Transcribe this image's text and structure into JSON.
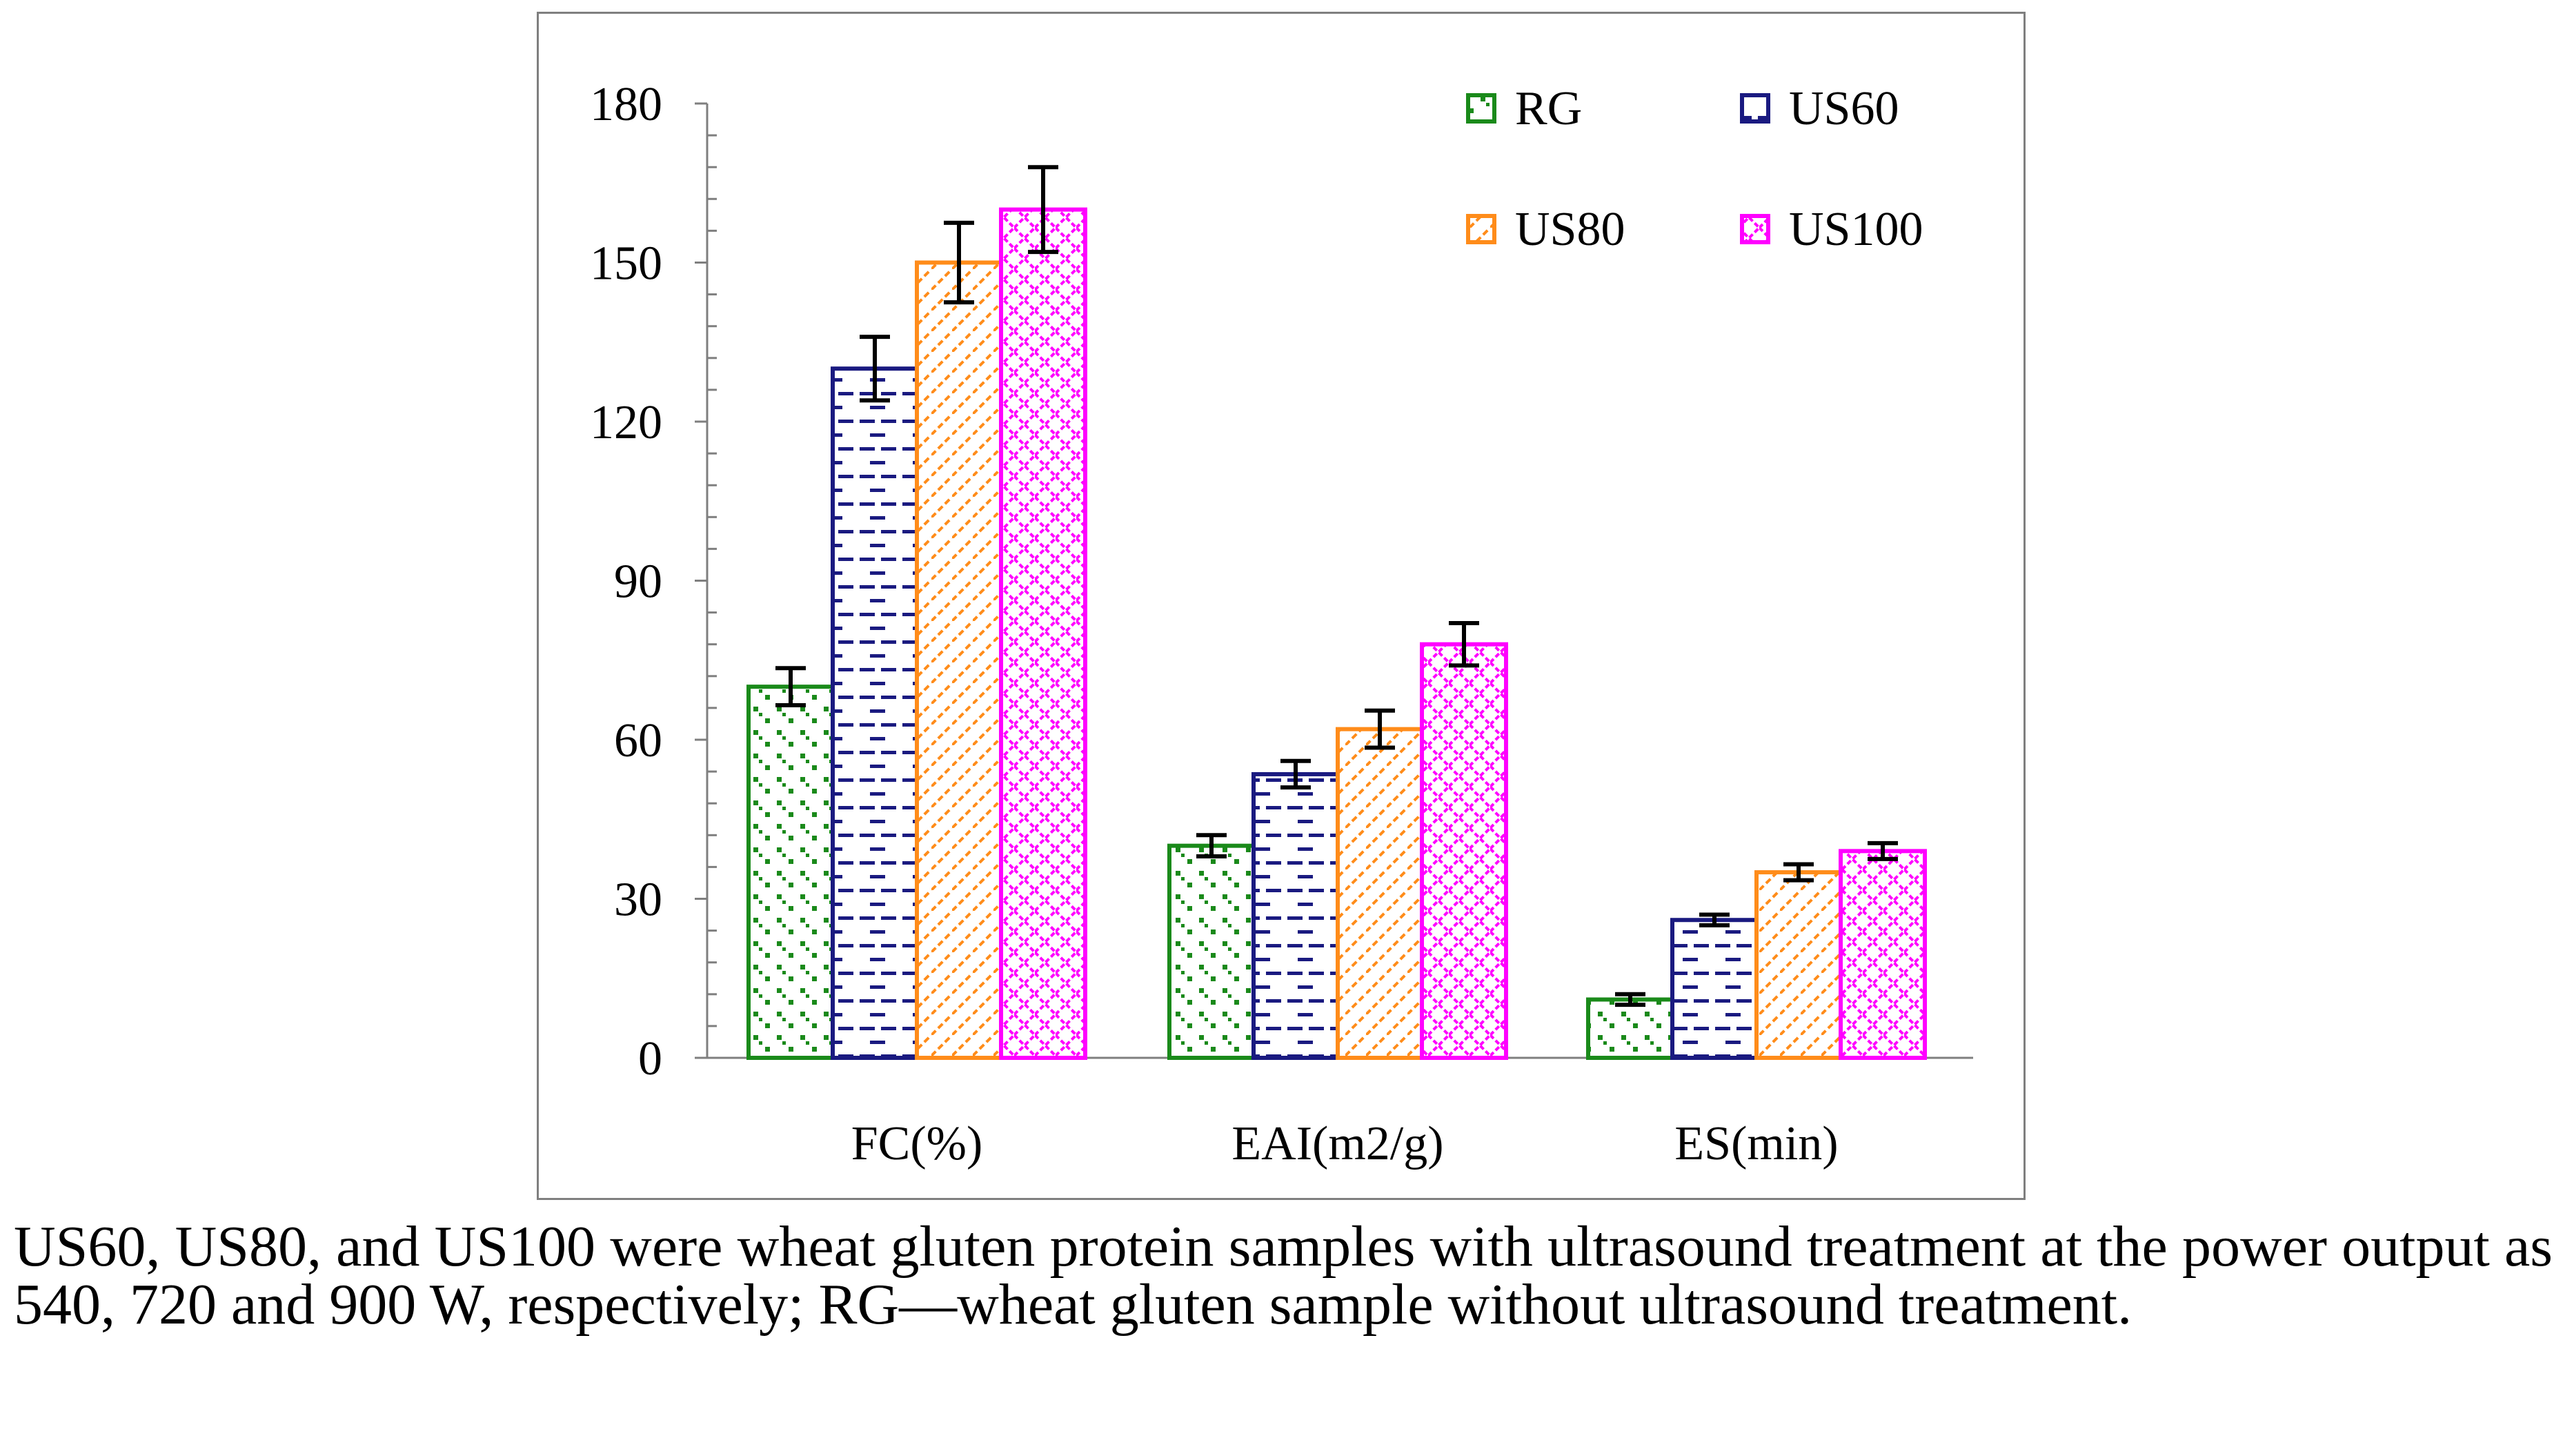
{
  "chart_data": {
    "type": "bar",
    "categories": [
      "FC(%)",
      "EAI(m2/g)",
      "ES(min)"
    ],
    "ylim": [
      0,
      180
    ],
    "yticks": [
      0,
      30,
      60,
      90,
      120,
      150,
      180
    ],
    "ytick_labels": [
      "0",
      "30",
      "60",
      "90",
      "120",
      "150",
      "180"
    ],
    "title": "",
    "xlabel": "",
    "ylabel": "",
    "legend_position": "top-right",
    "series": [
      {
        "name": "RG",
        "color": "#1a8a1a",
        "pattern": "dots",
        "values": [
          70,
          40,
          11
        ],
        "errors": [
          3.5,
          2,
          1
        ]
      },
      {
        "name": "US60",
        "color": "#1a1a80",
        "pattern": "dashes",
        "values": [
          130,
          53.5,
          26
        ],
        "errors": [
          6,
          2.5,
          1
        ]
      },
      {
        "name": "US80",
        "color": "#ff8c1a",
        "pattern": "diagonal",
        "values": [
          150,
          62,
          35
        ],
        "errors": [
          7.5,
          3.5,
          1.5
        ]
      },
      {
        "name": "US100",
        "color": "#ff00ff",
        "pattern": "crosshatch",
        "values": [
          160,
          78,
          39
        ],
        "errors": [
          8,
          4,
          1.5
        ]
      }
    ]
  },
  "caption": "US60, US80, and US100 were wheat gluten protein samples with ultrasound treatment at the power output as 540, 720 and 900 W, respectively; RG—wheat gluten sample without ultrasound treatment."
}
